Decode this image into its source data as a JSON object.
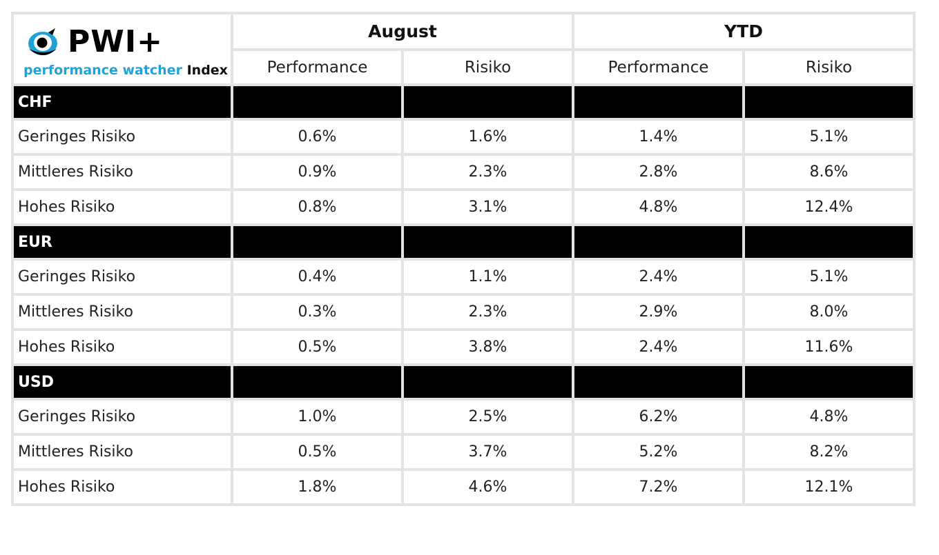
{
  "logo": {
    "name": "PWI+",
    "tagline_main": "performance watcher",
    "tagline_suffix": "Index",
    "accent_color": "#1fa3d6"
  },
  "headers": {
    "period1": "August",
    "period2": "YTD",
    "sub": [
      "Performance",
      "Risiko",
      "Performance",
      "Risiko"
    ]
  },
  "groups": [
    {
      "currency": "CHF",
      "rows": [
        {
          "label": "Geringes Risiko",
          "values": [
            "0.6%",
            "1.6%",
            "1.4%",
            "5.1%"
          ]
        },
        {
          "label": "Mittleres Risiko",
          "values": [
            "0.9%",
            "2.3%",
            "2.8%",
            "8.6%"
          ]
        },
        {
          "label": "Hohes Risiko",
          "values": [
            "0.8%",
            "3.1%",
            "4.8%",
            "12.4%"
          ]
        }
      ]
    },
    {
      "currency": "EUR",
      "rows": [
        {
          "label": "Geringes Risiko",
          "values": [
            "0.4%",
            "1.1%",
            "2.4%",
            "5.1%"
          ]
        },
        {
          "label": "Mittleres Risiko",
          "values": [
            "0.3%",
            "2.3%",
            "2.9%",
            "8.0%"
          ]
        },
        {
          "label": "Hohes Risiko",
          "values": [
            "0.5%",
            "3.8%",
            "2.4%",
            "11.6%"
          ]
        }
      ]
    },
    {
      "currency": "USD",
      "rows": [
        {
          "label": "Geringes Risiko",
          "values": [
            "1.0%",
            "2.5%",
            "6.2%",
            "4.8%"
          ]
        },
        {
          "label": "Mittleres Risiko",
          "values": [
            "0.5%",
            "3.7%",
            "5.2%",
            "8.2%"
          ]
        },
        {
          "label": "Hohes Risiko",
          "values": [
            "1.8%",
            "4.6%",
            "7.2%",
            "12.1%"
          ]
        }
      ]
    }
  ]
}
